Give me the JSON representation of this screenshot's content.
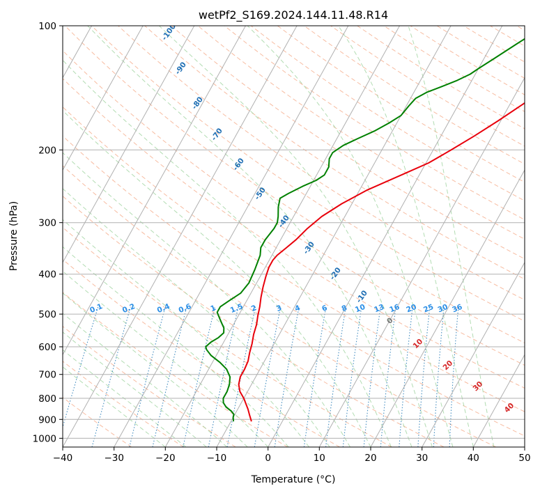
{
  "chart_data": {
    "type": "line",
    "title": "wetPf2_S169.2024.144.11.48.R14",
    "xlabel": "Temperature (°C)",
    "ylabel": "Pressure (hPa)",
    "xlim": [
      -40,
      50
    ],
    "ylim": [
      1050,
      100
    ],
    "y_scale": "log",
    "x_ticks": [
      -40,
      -30,
      -20,
      -10,
      0,
      10,
      20,
      30,
      40,
      50
    ],
    "y_ticks": [
      100,
      200,
      300,
      400,
      500,
      600,
      700,
      800,
      900,
      1000
    ],
    "grid": true,
    "background_lines": {
      "isotherms_skewed_color": "#b0b0b0",
      "dry_adiabats_color": "#f4a582",
      "moist_adiabats_color": "#9fd39f",
      "mixing_ratio_color": "#1f77b4"
    },
    "series": [
      {
        "color": "#e8000b",
        "points": [
          [
            -6,
            910
          ],
          [
            -7,
            880
          ],
          [
            -8,
            850
          ],
          [
            -10,
            800
          ],
          [
            -11.5,
            770
          ],
          [
            -12.5,
            740
          ],
          [
            -13,
            710
          ],
          [
            -13,
            680
          ],
          [
            -13.2,
            650
          ],
          [
            -13.8,
            620
          ],
          [
            -14.3,
            590
          ],
          [
            -15,
            560
          ],
          [
            -15.5,
            530
          ],
          [
            -16.2,
            505
          ],
          [
            -16.8,
            480
          ],
          [
            -17.6,
            455
          ],
          [
            -18.3,
            430
          ],
          [
            -18.9,
            405
          ],
          [
            -19.3,
            385
          ],
          [
            -19.3,
            370
          ],
          [
            -19,
            360
          ],
          [
            -18,
            345
          ],
          [
            -17,
            330
          ],
          [
            -16,
            310
          ],
          [
            -14.5,
            290
          ],
          [
            -12,
            270
          ],
          [
            -8.5,
            250
          ],
          [
            -3.5,
            230
          ],
          [
            0.5,
            215
          ],
          [
            3.5,
            200
          ],
          [
            6.5,
            185
          ],
          [
            9.5,
            170
          ],
          [
            12.5,
            155
          ],
          [
            15.5,
            142
          ],
          [
            18,
            130
          ],
          [
            20.5,
            122
          ],
          [
            23,
            116
          ],
          [
            25.5,
            110
          ],
          [
            28,
            104
          ],
          [
            30,
            100
          ]
        ]
      },
      {
        "color": "#008000",
        "points": [
          [
            -9.5,
            910
          ],
          [
            -10,
            890
          ],
          [
            -10.2,
            875
          ],
          [
            -11,
            860
          ],
          [
            -12.5,
            840
          ],
          [
            -13.5,
            820
          ],
          [
            -14,
            800
          ],
          [
            -14,
            770
          ],
          [
            -14.3,
            740
          ],
          [
            -15,
            710
          ],
          [
            -16.5,
            680
          ],
          [
            -18.5,
            655
          ],
          [
            -21,
            630
          ],
          [
            -22.5,
            610
          ],
          [
            -23,
            600
          ],
          [
            -22.5,
            585
          ],
          [
            -21.5,
            570
          ],
          [
            -21,
            555
          ],
          [
            -21.5,
            540
          ],
          [
            -22.5,
            525
          ],
          [
            -23.5,
            510
          ],
          [
            -24.5,
            495
          ],
          [
            -24.5,
            480
          ],
          [
            -23.5,
            465
          ],
          [
            -22,
            445
          ],
          [
            -21.5,
            420
          ],
          [
            -21.8,
            390
          ],
          [
            -22.3,
            360
          ],
          [
            -23,
            345
          ],
          [
            -23,
            330
          ],
          [
            -22.5,
            310
          ],
          [
            -22.5,
            300
          ],
          [
            -23,
            290
          ],
          [
            -24,
            275
          ],
          [
            -24.6,
            262
          ],
          [
            -23.5,
            255
          ],
          [
            -21.5,
            245
          ],
          [
            -19.5,
            237
          ],
          [
            -18.5,
            230
          ],
          [
            -18.5,
            220
          ],
          [
            -19.3,
            210
          ],
          [
            -19.3,
            203
          ],
          [
            -18,
            195
          ],
          [
            -16,
            188
          ],
          [
            -13.5,
            180
          ],
          [
            -11.5,
            172
          ],
          [
            -10,
            165
          ],
          [
            -9.5,
            156
          ],
          [
            -9,
            150
          ],
          [
            -7.5,
            145
          ],
          [
            -5,
            140
          ],
          [
            -3,
            136
          ],
          [
            -1,
            131
          ],
          [
            0,
            127
          ],
          [
            2,
            120
          ],
          [
            5,
            110
          ],
          [
            7,
            104
          ],
          [
            8.5,
            100
          ]
        ]
      }
    ],
    "isotherm_labels": [
      "-100",
      "-90",
      "-80",
      "-70",
      "-60",
      "-50",
      "-40",
      "-30",
      "-20",
      "-10"
    ],
    "mixing_ratio_labels": [
      "0.1",
      "0.2",
      "0.4",
      "0.6",
      "1",
      "1.5",
      "2",
      "3",
      "4",
      "6",
      "8",
      "10",
      "13",
      "16",
      "20",
      "25",
      "30",
      "36"
    ],
    "adiabat_labels": [
      "0",
      "10",
      "20",
      "30",
      "40"
    ]
  }
}
